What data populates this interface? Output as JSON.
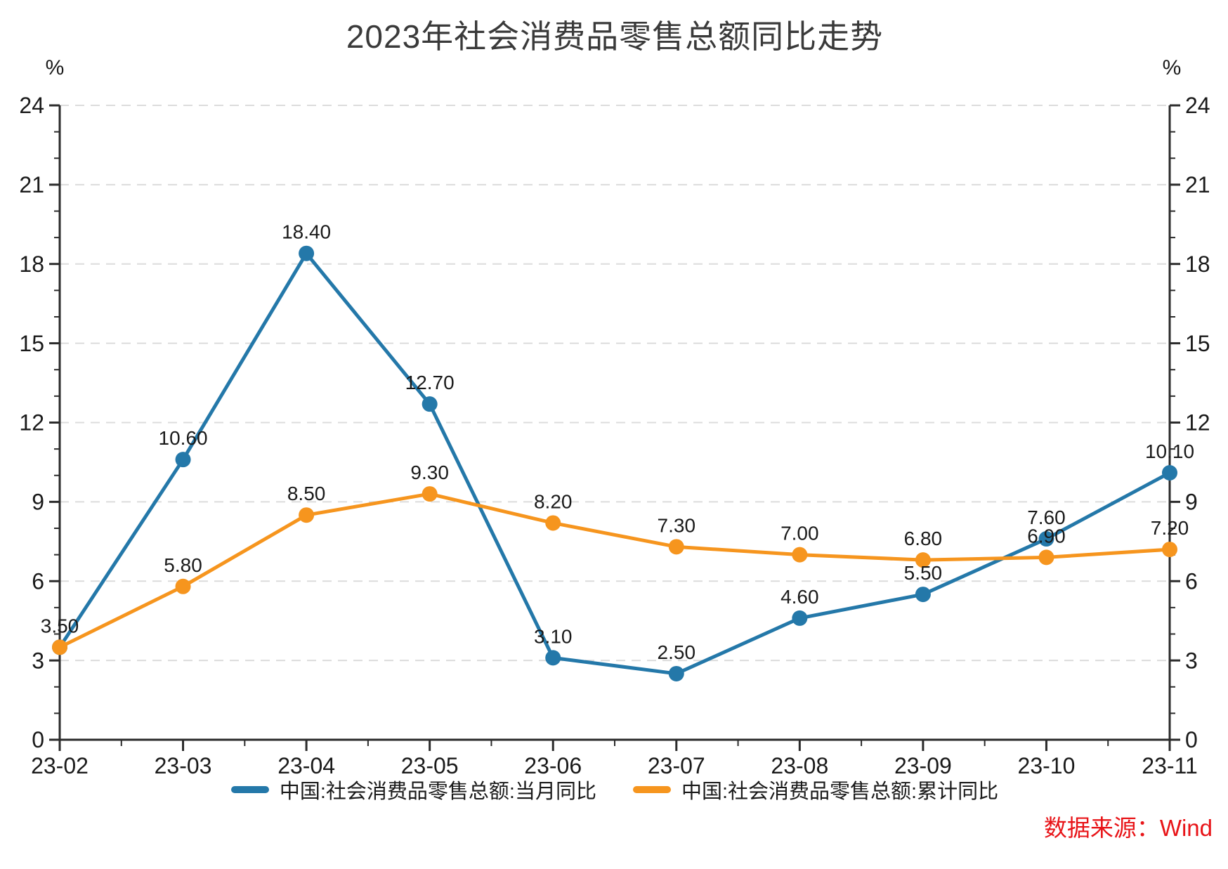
{
  "chart_data": {
    "type": "line",
    "title": "2023年社会消费品零售总额同比走势",
    "unit": "%",
    "categories": [
      "23-02",
      "23-03",
      "23-04",
      "23-05",
      "23-06",
      "23-07",
      "23-08",
      "23-09",
      "23-10",
      "23-11"
    ],
    "series": [
      {
        "name": "中国:社会消费品零售总额:当月同比",
        "color": "#2478a9",
        "values": [
          3.5,
          10.6,
          18.4,
          12.7,
          3.1,
          2.5,
          4.6,
          5.5,
          7.6,
          10.1
        ]
      },
      {
        "name": "中国:社会消费品零售总额:累计同比",
        "color": "#f6951e",
        "values": [
          3.5,
          5.8,
          8.5,
          9.3,
          8.2,
          7.3,
          7.0,
          6.8,
          6.9,
          7.2
        ]
      }
    ],
    "ylim": [
      0,
      24
    ],
    "y_ticks": [
      0,
      3,
      6,
      9,
      12,
      15,
      18,
      21,
      24
    ],
    "y_minor_step": 1,
    "grid": "horizontal-dashed",
    "legend_position": "bottom",
    "value_labels_decimals": 2,
    "colors": {
      "axis": "#2b2b2b",
      "gridline": "#dcdcdc",
      "tick_label": "#1a1a1a",
      "value_label": "#1a1a1a"
    }
  },
  "source_note": "数据来源：Wind"
}
